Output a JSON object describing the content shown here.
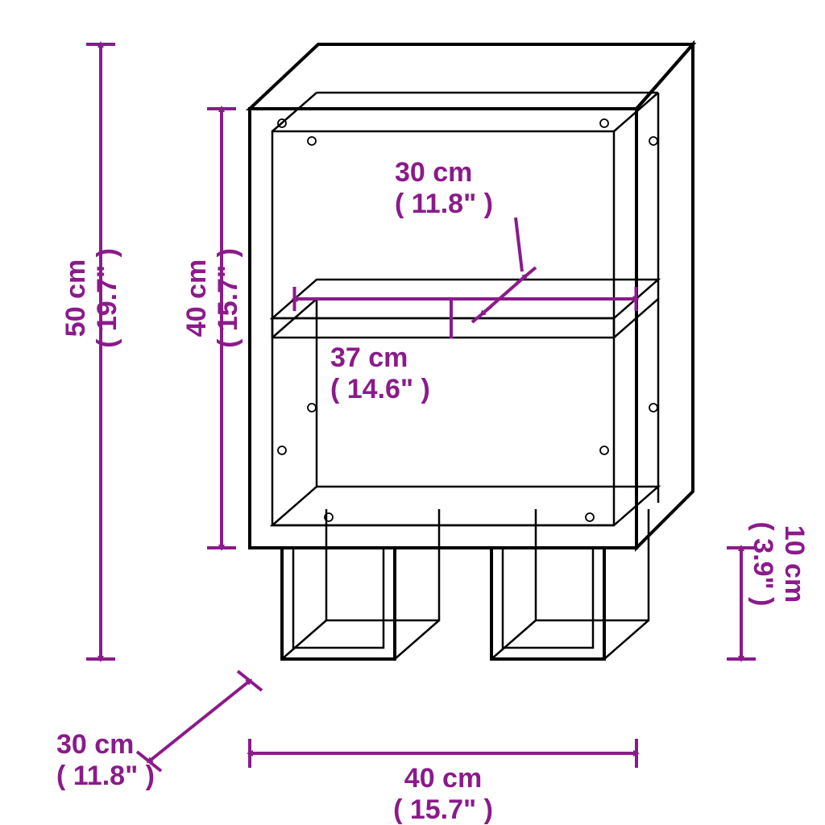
{
  "colors": {
    "accent": "#8b1a8b",
    "outline": "#000000",
    "background": "#ffffff"
  },
  "stroke": {
    "furniture_main": 4,
    "furniture_thin": 2.5,
    "dimension": 4,
    "arrow_size": 14
  },
  "typography": {
    "label_fontsize": 34,
    "font_weight": "700"
  },
  "dimensions": {
    "total_height": {
      "cm": "50 cm",
      "in": "( 19.7\" )"
    },
    "body_height": {
      "cm": "40 cm",
      "in": "( 15.7\" )"
    },
    "inner_depth": {
      "cm": "30 cm",
      "in": "( 11.8\" )"
    },
    "inner_width": {
      "cm": "37 cm",
      "in": "( 14.6\" )"
    },
    "leg_height": {
      "cm": "10 cm",
      "in": "( 3.9\" )"
    },
    "outer_depth": {
      "cm": "30 cm",
      "in": "( 11.8\" )"
    },
    "outer_width": {
      "cm": "40 cm",
      "in": "( 15.7\" )"
    }
  }
}
